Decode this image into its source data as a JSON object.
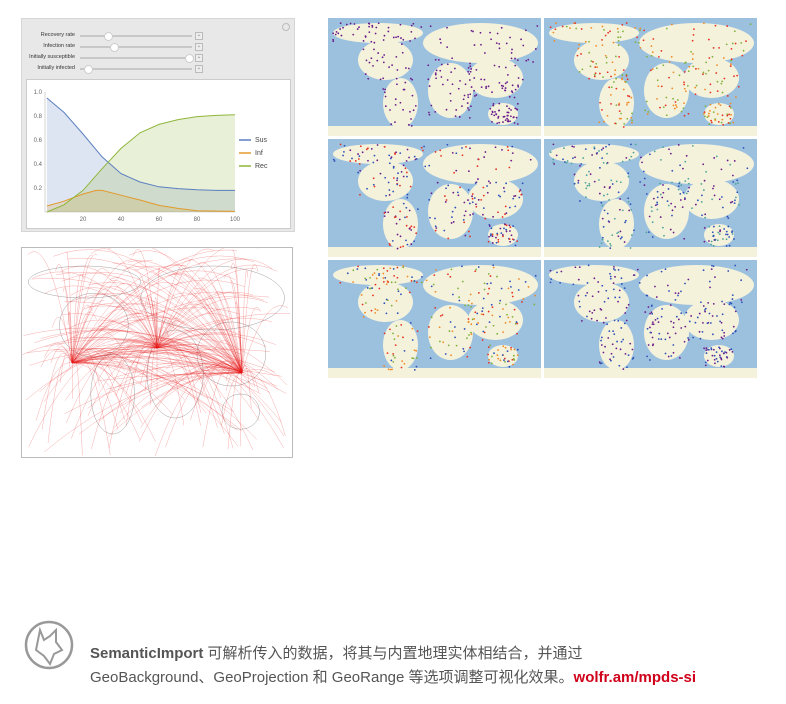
{
  "manipulate": {
    "sliders": [
      {
        "label": "Recovery rate",
        "value": 0.25
      },
      {
        "label": "Infection rate",
        "value": 0.3
      },
      {
        "label": "Initially susceptible",
        "value": 0.97
      },
      {
        "label": "Initially infected",
        "value": 0.07
      }
    ]
  },
  "chart_data": {
    "type": "area",
    "xlim": [
      0,
      100
    ],
    "ylim": [
      0,
      1.0
    ],
    "xticks": [
      "20",
      "40",
      "60",
      "80",
      "100"
    ],
    "yticks": [
      "0.2",
      "0.4",
      "0.6",
      "0.8",
      "1.0"
    ],
    "legend_position": "right",
    "series": [
      {
        "name": "Sus",
        "color": "#5b7fbf",
        "x": [
          1,
          10,
          20,
          30,
          40,
          50,
          60,
          70,
          80,
          90,
          100
        ],
        "values": [
          0.95,
          0.83,
          0.65,
          0.46,
          0.32,
          0.25,
          0.21,
          0.195,
          0.185,
          0.18,
          0.18
        ]
      },
      {
        "name": "Inf",
        "color": "#e39a2c",
        "x": [
          1,
          10,
          20,
          27,
          30,
          40,
          50,
          60,
          70,
          80,
          100
        ],
        "values": [
          0.05,
          0.09,
          0.15,
          0.18,
          0.18,
          0.14,
          0.1,
          0.055,
          0.03,
          0.01,
          0.005
        ]
      },
      {
        "name": "Rec",
        "color": "#8fb63b",
        "x": [
          1,
          10,
          20,
          30,
          40,
          50,
          60,
          70,
          80,
          90,
          100
        ],
        "values": [
          0,
          0.06,
          0.18,
          0.36,
          0.53,
          0.66,
          0.73,
          0.77,
          0.795,
          0.805,
          0.81
        ]
      }
    ]
  },
  "colors": {
    "ocean": "#9cc1df",
    "land": "#f5f2dc",
    "purple": "#6a1b8a",
    "red": "#e53222",
    "blue": "#2c4fb8",
    "orange": "#f08a24",
    "green": "#7fb13a"
  },
  "footer": {
    "line1_bold": "SemanticImport",
    "line1": " 可解析传入的数据，将其与内置地理实体相结合，并通过",
    "line2": "GeoBackground、GeoProjection 和 GeoRange 等选项调整可视化效果。",
    "link": "wolfr.am/mpds-si"
  }
}
